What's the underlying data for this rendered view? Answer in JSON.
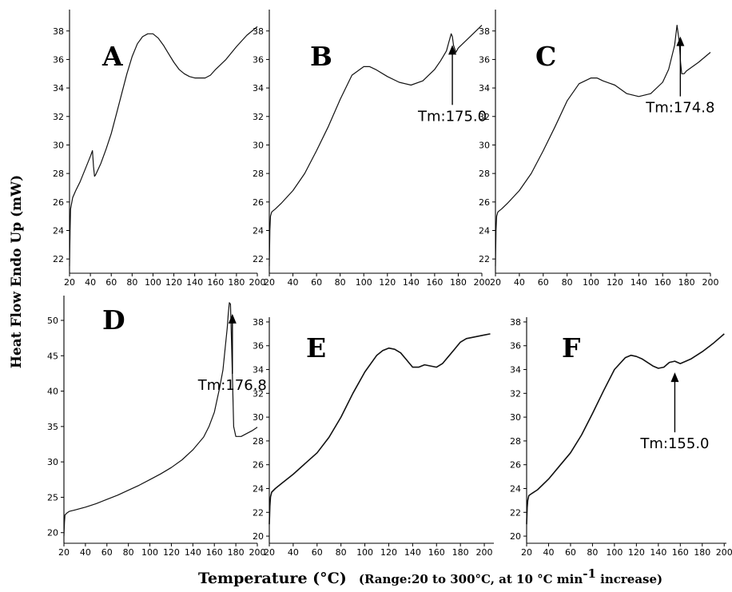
{
  "figure": {
    "ylabel": "Heat Flow Endo Up (mW)",
    "xlabel_main": "Temperature (°C)",
    "xlabel_note_pre": "(Range:20 to 300°C, at 10 °C min",
    "xlabel_note_sup": "-1",
    "xlabel_note_post": " increase)"
  },
  "chart_data": [
    {
      "type": "line",
      "label": "A",
      "xlim": [
        20,
        200
      ],
      "ylim": [
        21,
        39.5
      ],
      "xticks": [
        "20",
        "40",
        "60",
        "80",
        "100",
        "120",
        "140",
        "160",
        "180",
        "200"
      ],
      "yticks": [
        "22",
        "24",
        "26",
        "28",
        "30",
        "32",
        "34",
        "36",
        "38"
      ],
      "x": [
        20,
        20.5,
        21,
        23,
        26,
        30,
        35,
        40,
        42,
        43,
        44,
        45,
        50,
        55,
        60,
        65,
        70,
        75,
        80,
        85,
        90,
        95,
        100,
        105,
        110,
        115,
        120,
        125,
        130,
        135,
        140,
        145,
        150,
        155,
        160,
        170,
        180,
        190,
        200
      ],
      "y": [
        21.5,
        24,
        25.5,
        26.3,
        26.8,
        27.4,
        28.3,
        29.2,
        29.6,
        28.5,
        27.8,
        27.9,
        28.7,
        29.7,
        30.8,
        32.2,
        33.6,
        35,
        36.2,
        37.1,
        37.6,
        37.8,
        37.8,
        37.5,
        37,
        36.4,
        35.8,
        35.3,
        35,
        34.8,
        34.7,
        34.7,
        34.7,
        34.9,
        35.3,
        36,
        36.9,
        37.7,
        38.3
      ],
      "annotation": null
    },
    {
      "type": "line",
      "label": "B",
      "xlim": [
        20,
        200
      ],
      "ylim": [
        21,
        39.5
      ],
      "xticks": [
        "20",
        "40",
        "60",
        "80",
        "100",
        "120",
        "140",
        "160",
        "180",
        "200"
      ],
      "yticks": [
        "22",
        "24",
        "26",
        "28",
        "30",
        "32",
        "34",
        "36",
        "38"
      ],
      "x": [
        20,
        20.5,
        21,
        22,
        25,
        30,
        40,
        50,
        60,
        70,
        80,
        90,
        100,
        105,
        110,
        120,
        130,
        140,
        150,
        160,
        165,
        170,
        172,
        174,
        175,
        176,
        178,
        180,
        190,
        200
      ],
      "y": [
        21.5,
        24,
        25,
        25.3,
        25.5,
        25.9,
        26.8,
        28,
        29.6,
        31.3,
        33.2,
        34.9,
        35.5,
        35.5,
        35.3,
        34.8,
        34.4,
        34.2,
        34.5,
        35.3,
        35.9,
        36.6,
        37.2,
        37.8,
        37.6,
        37,
        36.5,
        36.8,
        37.6,
        38.4
      ],
      "annotation": {
        "text": "Tm:175.0",
        "x": 175
      }
    },
    {
      "type": "line",
      "label": "C",
      "xlim": [
        20,
        200
      ],
      "ylim": [
        21,
        39.5
      ],
      "xticks": [
        "20",
        "40",
        "60",
        "80",
        "100",
        "120",
        "140",
        "160",
        "180",
        "200"
      ],
      "yticks": [
        "22",
        "24",
        "26",
        "28",
        "30",
        "32",
        "34",
        "36",
        "38"
      ],
      "x": [
        20,
        20.5,
        21,
        22,
        25,
        30,
        40,
        50,
        60,
        70,
        80,
        90,
        100,
        105,
        110,
        120,
        130,
        140,
        150,
        160,
        165,
        170,
        172,
        174,
        175,
        176,
        178,
        180,
        190,
        200
      ],
      "y": [
        21.5,
        24,
        25,
        25.3,
        25.5,
        25.9,
        26.8,
        28,
        29.6,
        31.3,
        33.1,
        34.3,
        34.7,
        34.7,
        34.5,
        34.2,
        33.6,
        33.4,
        33.6,
        34.4,
        35.3,
        37,
        38.4,
        37.2,
        35.8,
        35,
        35,
        35.2,
        35.8,
        36.5
      ],
      "annotation": {
        "text": "Tm:174.8",
        "x": 174.8
      }
    },
    {
      "type": "line",
      "label": "D",
      "xlim": [
        20,
        200
      ],
      "ylim": [
        18.5,
        53.5
      ],
      "xticks": [
        "20",
        "40",
        "60",
        "80",
        "100",
        "120",
        "140",
        "160",
        "180",
        "200"
      ],
      "yticks": [
        "20",
        "25",
        "30",
        "35",
        "40",
        "45",
        "50"
      ],
      "x": [
        20,
        20.5,
        21,
        23,
        25,
        30,
        40,
        50,
        60,
        70,
        80,
        90,
        100,
        110,
        120,
        130,
        140,
        150,
        155,
        160,
        165,
        168,
        170,
        172,
        173,
        174,
        175,
        176,
        177,
        178,
        180,
        185,
        190,
        195,
        200
      ],
      "y": [
        19.5,
        21.5,
        22.5,
        22.8,
        23,
        23.2,
        23.6,
        24.1,
        24.7,
        25.3,
        26,
        26.7,
        27.5,
        28.3,
        29.2,
        30.3,
        31.7,
        33.5,
        35,
        37,
        40.5,
        43,
        46,
        49,
        51,
        52.5,
        52.3,
        47,
        41,
        35,
        33.6,
        33.6,
        34,
        34.4,
        34.9
      ],
      "annotation": {
        "text": "Tm:176.8",
        "x": 176.8
      }
    },
    {
      "type": "line",
      "label": "E",
      "xlim": [
        20,
        208
      ],
      "ylim": [
        19.4,
        38.4
      ],
      "xticks": [
        "20",
        "40",
        "60",
        "80",
        "100",
        "120",
        "140",
        "160",
        "180",
        "200"
      ],
      "yticks": [
        "20",
        "22",
        "24",
        "26",
        "28",
        "30",
        "32",
        "34",
        "36",
        "38"
      ],
      "x": [
        20,
        20.5,
        21,
        22,
        25,
        30,
        40,
        50,
        60,
        70,
        80,
        90,
        100,
        110,
        115,
        120,
        125,
        130,
        135,
        140,
        145,
        150,
        155,
        160,
        165,
        170,
        175,
        180,
        185,
        190,
        200,
        205
      ],
      "y": [
        21,
        22.5,
        23.3,
        23.7,
        24,
        24.4,
        25.2,
        26.1,
        27,
        28.3,
        30,
        32,
        33.8,
        35.2,
        35.6,
        35.8,
        35.7,
        35.4,
        34.8,
        34.2,
        34.2,
        34.4,
        34.3,
        34.2,
        34.5,
        35.1,
        35.7,
        36.3,
        36.6,
        36.7,
        36.9,
        37
      ],
      "annotation": null
    },
    {
      "type": "line",
      "label": "F",
      "xlim": [
        20,
        202
      ],
      "ylim": [
        19.4,
        38.4
      ],
      "xticks": [
        "20",
        "40",
        "60",
        "80",
        "100",
        "120",
        "140",
        "160",
        "180",
        "200"
      ],
      "yticks": [
        "20",
        "22",
        "24",
        "26",
        "28",
        "30",
        "32",
        "34",
        "36",
        "38"
      ],
      "x": [
        20,
        20.5,
        21,
        22,
        25,
        30,
        40,
        50,
        60,
        70,
        80,
        90,
        100,
        110,
        115,
        120,
        125,
        130,
        135,
        140,
        145,
        150,
        155,
        160,
        165,
        170,
        180,
        190,
        200
      ],
      "y": [
        21,
        22.4,
        23,
        23.4,
        23.6,
        23.9,
        24.8,
        25.9,
        27,
        28.5,
        30.3,
        32.2,
        34,
        35,
        35.2,
        35.1,
        34.9,
        34.6,
        34.3,
        34.1,
        34.2,
        34.6,
        34.7,
        34.5,
        34.7,
        34.9,
        35.5,
        36.2,
        37
      ],
      "annotation": {
        "text": "Tm:155.0",
        "x": 155
      }
    }
  ]
}
